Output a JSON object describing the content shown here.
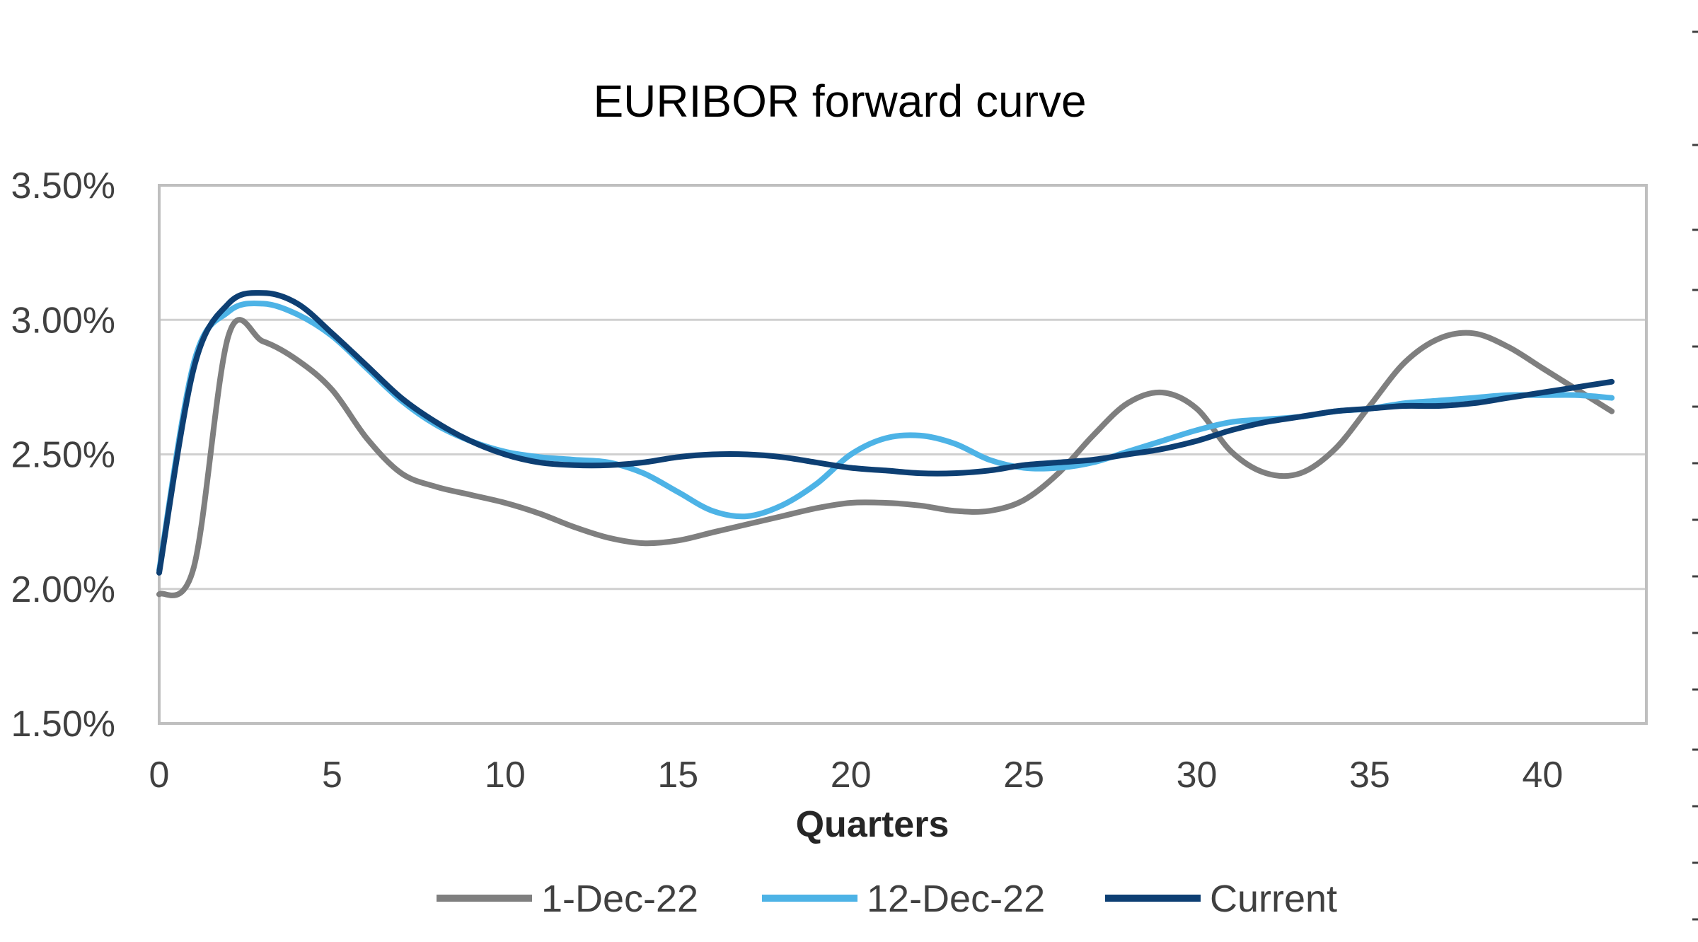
{
  "chart_data": {
    "type": "line",
    "title": "EURIBOR  forward curve",
    "xlabel": "Quarters",
    "ylabel": "",
    "xlim": [
      0,
      43
    ],
    "ylim": [
      1.5,
      3.5
    ],
    "x_ticks": [
      0,
      5,
      10,
      15,
      20,
      25,
      30,
      35,
      40
    ],
    "y_ticks": [
      1.5,
      2.0,
      2.5,
      3.0,
      3.5
    ],
    "y_tick_labels": [
      "1.50%",
      "2.00%",
      "2.50%",
      "3.00%",
      "3.50%"
    ],
    "grid": true,
    "legend_position": "bottom",
    "x": [
      0,
      1,
      2,
      3,
      4,
      5,
      6,
      7,
      8,
      9,
      10,
      11,
      12,
      13,
      14,
      15,
      16,
      17,
      18,
      19,
      20,
      21,
      22,
      23,
      24,
      25,
      26,
      27,
      28,
      29,
      30,
      31,
      32,
      33,
      34,
      35,
      36,
      37,
      38,
      39,
      40,
      41,
      42
    ],
    "series": [
      {
        "name": "1-Dec-22",
        "color": "#7f7f7f",
        "values": [
          1.98,
          2.08,
          2.94,
          2.92,
          2.85,
          2.74,
          2.56,
          2.43,
          2.38,
          2.35,
          2.32,
          2.28,
          2.23,
          2.19,
          2.17,
          2.18,
          2.21,
          2.24,
          2.27,
          2.3,
          2.32,
          2.32,
          2.31,
          2.29,
          2.29,
          2.33,
          2.43,
          2.57,
          2.69,
          2.73,
          2.67,
          2.51,
          2.43,
          2.43,
          2.52,
          2.68,
          2.84,
          2.93,
          2.95,
          2.9,
          2.82,
          2.74,
          2.66
        ]
      },
      {
        "name": "12-Dec-22",
        "color": "#4db3e6",
        "values": [
          2.07,
          2.84,
          3.03,
          3.06,
          3.02,
          2.94,
          2.82,
          2.7,
          2.61,
          2.55,
          2.51,
          2.49,
          2.48,
          2.47,
          2.43,
          2.36,
          2.29,
          2.27,
          2.31,
          2.39,
          2.5,
          2.56,
          2.57,
          2.54,
          2.48,
          2.45,
          2.45,
          2.47,
          2.51,
          2.55,
          2.59,
          2.62,
          2.63,
          2.64,
          2.66,
          2.67,
          2.69,
          2.7,
          2.71,
          2.72,
          2.72,
          2.72,
          2.71
        ]
      },
      {
        "name": "Current",
        "color": "#0d3f73",
        "values": [
          2.06,
          2.82,
          3.06,
          3.1,
          3.06,
          2.95,
          2.83,
          2.71,
          2.62,
          2.55,
          2.5,
          2.47,
          2.46,
          2.46,
          2.47,
          2.49,
          2.5,
          2.5,
          2.49,
          2.47,
          2.45,
          2.44,
          2.43,
          2.43,
          2.44,
          2.46,
          2.47,
          2.48,
          2.5,
          2.52,
          2.55,
          2.59,
          2.62,
          2.64,
          2.66,
          2.67,
          2.68,
          2.68,
          2.69,
          2.71,
          2.73,
          2.75,
          2.77
        ]
      }
    ]
  }
}
